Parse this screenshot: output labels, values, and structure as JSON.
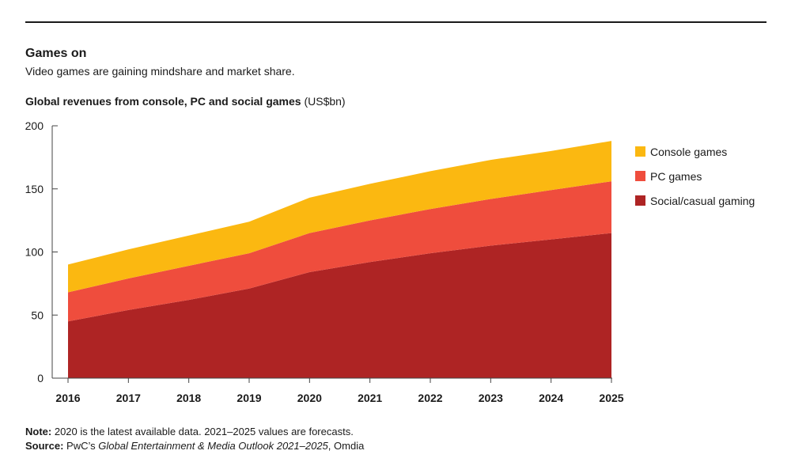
{
  "header": {
    "title": "Games on",
    "subtitle": "Video games are gaining mindshare and market share.",
    "chart_heading": "Global revenues from console, PC and social games",
    "chart_unit": "(US$bn)"
  },
  "footer": {
    "note_label": "Note:",
    "note_text": "2020 is the latest available data. 2021–2025 values are forecasts.",
    "source_label": "Source:",
    "source_prefix": "PwC’s",
    "source_italic": "Global Entertainment & Media Outlook 2021–2025",
    "source_suffix": ", Omdia"
  },
  "chart_data": {
    "type": "area",
    "stacked": true,
    "title": "Global revenues from console, PC and social games",
    "ylabel": "US$bn",
    "x": [
      "2016",
      "2017",
      "2018",
      "2019",
      "2020",
      "2021",
      "2022",
      "2023",
      "2024",
      "2025"
    ],
    "ylim": [
      0,
      200
    ],
    "yticks": [
      0,
      50,
      100,
      150,
      200
    ],
    "grid": false,
    "legend_position": "right",
    "series": [
      {
        "name": "Social/casual gaming",
        "color": "#ae2424",
        "values": [
          45,
          54,
          62,
          71,
          84,
          92,
          99,
          105,
          110,
          115
        ]
      },
      {
        "name": "PC games",
        "color": "#ef4d3d",
        "values": [
          23,
          25,
          27,
          28,
          31,
          33,
          35,
          37,
          39,
          41
        ]
      },
      {
        "name": "Console games",
        "color": "#fbb811",
        "values": [
          22,
          23,
          24,
          25,
          28,
          29,
          30,
          31,
          31,
          32
        ]
      }
    ]
  }
}
